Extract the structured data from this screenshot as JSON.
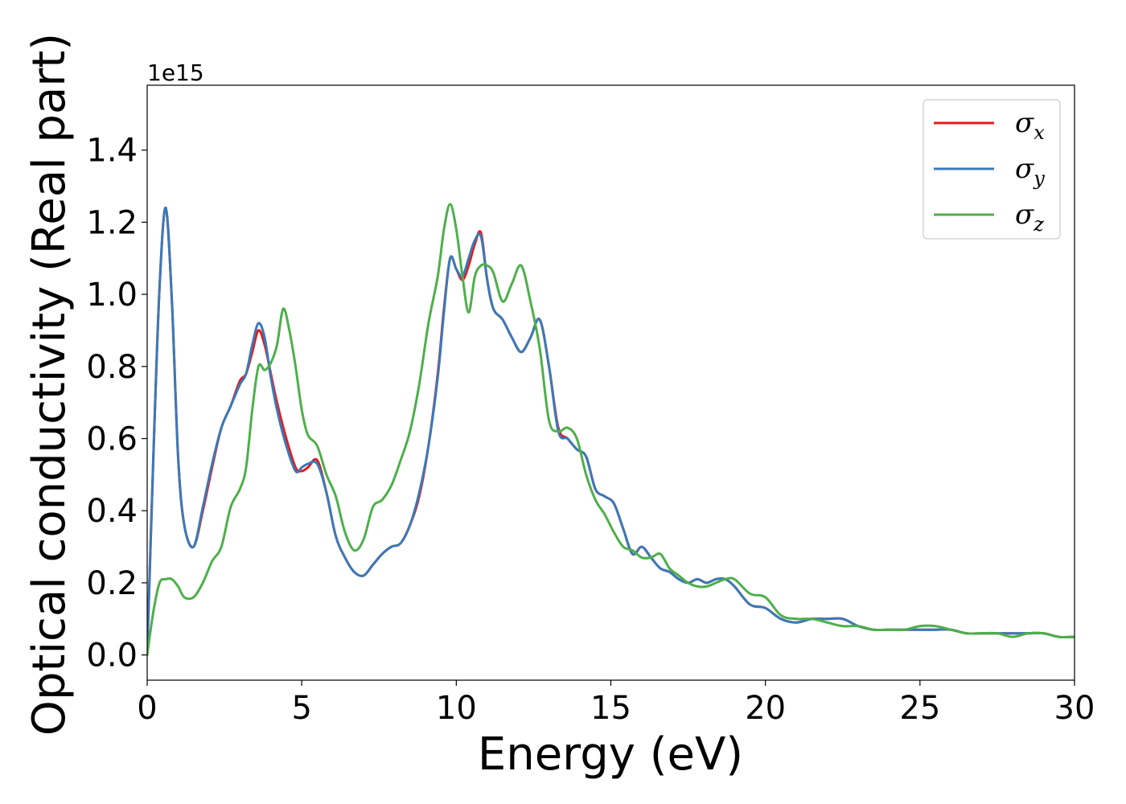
{
  "chart_data": {
    "type": "line",
    "xlabel": "Energy (eV)",
    "ylabel": "Optical conductivity (Real part)",
    "y_offset_text": "1e15",
    "xlim": [
      0,
      30
    ],
    "ylim": [
      -0.07,
      1.58
    ],
    "y_scale_multiplier": 1000000000000000.0,
    "x_ticks": [
      0,
      5,
      10,
      15,
      20,
      25,
      30
    ],
    "x_tick_labels": [
      "0",
      "5",
      "10",
      "15",
      "20",
      "25",
      "30"
    ],
    "y_ticks": [
      0.0,
      0.2,
      0.4,
      0.6,
      0.8,
      1.0,
      1.2,
      1.4
    ],
    "y_tick_labels": [
      "0.0",
      "0.2",
      "0.4",
      "0.6",
      "0.8",
      "1.0",
      "1.2",
      "1.4"
    ],
    "grid": false,
    "legend_position": "top-right",
    "series": [
      {
        "name": "σ_x",
        "label_base": "σ",
        "label_sub": "x",
        "color": "#e41a1c",
        "x": [
          0,
          0.2,
          0.4,
          0.6,
          0.8,
          1.0,
          1.2,
          1.5,
          1.8,
          2.1,
          2.4,
          2.7,
          3.0,
          3.2,
          3.4,
          3.6,
          3.8,
          4.0,
          4.2,
          4.5,
          4.8,
          5.0,
          5.2,
          5.5,
          5.8,
          6.1,
          6.4,
          6.7,
          7.0,
          7.3,
          7.6,
          7.9,
          8.2,
          8.5,
          8.8,
          9.1,
          9.4,
          9.6,
          9.8,
          10.0,
          10.2,
          10.4,
          10.6,
          10.8,
          11.0,
          11.2,
          11.5,
          11.8,
          12.1,
          12.4,
          12.7,
          13.0,
          13.3,
          13.6,
          13.9,
          14.2,
          14.5,
          14.8,
          15.1,
          15.4,
          15.7,
          16.0,
          16.3,
          16.6,
          16.9,
          17.2,
          17.5,
          17.8,
          18.1,
          18.4,
          18.7,
          19.0,
          19.5,
          20.0,
          20.5,
          21.0,
          21.5,
          22.0,
          22.5,
          23.0,
          23.5,
          24.0,
          24.5,
          25.0,
          25.5,
          26.0,
          26.5,
          27.0,
          27.5,
          28.0,
          28.5,
          29.0,
          29.5,
          30.0
        ],
        "y": [
          0.0,
          0.55,
          1.02,
          1.24,
          0.98,
          0.55,
          0.36,
          0.3,
          0.4,
          0.52,
          0.63,
          0.69,
          0.76,
          0.78,
          0.84,
          0.9,
          0.86,
          0.78,
          0.7,
          0.6,
          0.52,
          0.51,
          0.52,
          0.54,
          0.45,
          0.33,
          0.27,
          0.23,
          0.22,
          0.25,
          0.28,
          0.3,
          0.31,
          0.36,
          0.44,
          0.58,
          0.78,
          0.96,
          1.1,
          1.07,
          1.04,
          1.08,
          1.14,
          1.17,
          1.04,
          0.96,
          0.93,
          0.88,
          0.84,
          0.88,
          0.93,
          0.8,
          0.63,
          0.6,
          0.57,
          0.55,
          0.46,
          0.44,
          0.42,
          0.35,
          0.28,
          0.3,
          0.27,
          0.24,
          0.23,
          0.21,
          0.2,
          0.21,
          0.2,
          0.21,
          0.21,
          0.19,
          0.14,
          0.13,
          0.1,
          0.09,
          0.1,
          0.1,
          0.1,
          0.08,
          0.07,
          0.07,
          0.07,
          0.07,
          0.07,
          0.07,
          0.06,
          0.06,
          0.06,
          0.06,
          0.06,
          0.06,
          0.05,
          0.05
        ]
      },
      {
        "name": "σ_y",
        "label_base": "σ",
        "label_sub": "y",
        "color": "#3a7ab8",
        "x": [
          0,
          0.2,
          0.4,
          0.6,
          0.8,
          1.0,
          1.2,
          1.5,
          1.8,
          2.1,
          2.4,
          2.7,
          3.0,
          3.2,
          3.4,
          3.6,
          3.8,
          4.0,
          4.2,
          4.5,
          4.8,
          5.0,
          5.2,
          5.5,
          5.8,
          6.1,
          6.4,
          6.7,
          7.0,
          7.3,
          7.6,
          7.9,
          8.2,
          8.5,
          8.8,
          9.1,
          9.4,
          9.6,
          9.8,
          10.0,
          10.2,
          10.4,
          10.6,
          10.8,
          11.0,
          11.2,
          11.5,
          11.8,
          12.1,
          12.4,
          12.7,
          13.0,
          13.3,
          13.6,
          13.9,
          14.2,
          14.5,
          14.8,
          15.1,
          15.4,
          15.7,
          16.0,
          16.3,
          16.6,
          16.9,
          17.2,
          17.5,
          17.8,
          18.1,
          18.4,
          18.7,
          19.0,
          19.5,
          20.0,
          20.5,
          21.0,
          21.5,
          22.0,
          22.5,
          23.0,
          23.5,
          24.0,
          24.5,
          25.0,
          25.5,
          26.0,
          26.5,
          27.0,
          27.5,
          28.0,
          28.5,
          29.0,
          29.5,
          30.0
        ],
        "y": [
          0.0,
          0.55,
          1.02,
          1.24,
          0.98,
          0.55,
          0.36,
          0.3,
          0.41,
          0.53,
          0.63,
          0.69,
          0.75,
          0.78,
          0.86,
          0.92,
          0.88,
          0.77,
          0.68,
          0.58,
          0.51,
          0.52,
          0.53,
          0.53,
          0.45,
          0.33,
          0.27,
          0.23,
          0.22,
          0.25,
          0.28,
          0.3,
          0.31,
          0.36,
          0.45,
          0.58,
          0.77,
          0.95,
          1.1,
          1.07,
          1.05,
          1.1,
          1.15,
          1.16,
          1.04,
          0.96,
          0.93,
          0.88,
          0.84,
          0.88,
          0.93,
          0.8,
          0.62,
          0.6,
          0.57,
          0.55,
          0.46,
          0.44,
          0.42,
          0.35,
          0.28,
          0.3,
          0.27,
          0.24,
          0.23,
          0.21,
          0.2,
          0.21,
          0.2,
          0.21,
          0.21,
          0.19,
          0.14,
          0.13,
          0.1,
          0.09,
          0.1,
          0.1,
          0.1,
          0.08,
          0.07,
          0.07,
          0.07,
          0.07,
          0.07,
          0.07,
          0.06,
          0.06,
          0.06,
          0.06,
          0.06,
          0.06,
          0.05,
          0.05
        ]
      },
      {
        "name": "σ_z",
        "label_base": "σ",
        "label_sub": "z",
        "color": "#4daf4a",
        "x": [
          0,
          0.2,
          0.4,
          0.6,
          0.8,
          1.0,
          1.2,
          1.5,
          1.8,
          2.1,
          2.4,
          2.7,
          3.0,
          3.2,
          3.4,
          3.6,
          3.8,
          4.0,
          4.2,
          4.4,
          4.6,
          4.8,
          5.0,
          5.2,
          5.5,
          5.8,
          6.1,
          6.4,
          6.7,
          7.0,
          7.3,
          7.6,
          7.9,
          8.2,
          8.5,
          8.8,
          9.1,
          9.4,
          9.6,
          9.8,
          10.0,
          10.2,
          10.4,
          10.6,
          10.8,
          11.0,
          11.2,
          11.5,
          11.8,
          12.1,
          12.4,
          12.7,
          13.0,
          13.3,
          13.6,
          13.9,
          14.2,
          14.5,
          14.8,
          15.1,
          15.4,
          15.7,
          16.0,
          16.3,
          16.6,
          16.9,
          17.2,
          17.5,
          17.8,
          18.1,
          18.4,
          18.7,
          19.0,
          19.5,
          20.0,
          20.5,
          21.0,
          21.5,
          22.0,
          22.5,
          23.0,
          23.5,
          24.0,
          24.5,
          25.0,
          25.5,
          26.0,
          26.5,
          27.0,
          27.5,
          28.0,
          28.5,
          29.0,
          29.5,
          30.0
        ],
        "y": [
          0.0,
          0.12,
          0.2,
          0.21,
          0.21,
          0.19,
          0.16,
          0.16,
          0.2,
          0.26,
          0.3,
          0.41,
          0.46,
          0.52,
          0.68,
          0.8,
          0.79,
          0.81,
          0.86,
          0.96,
          0.9,
          0.8,
          0.68,
          0.61,
          0.58,
          0.5,
          0.44,
          0.34,
          0.29,
          0.32,
          0.41,
          0.43,
          0.47,
          0.54,
          0.62,
          0.75,
          0.92,
          1.05,
          1.18,
          1.25,
          1.18,
          1.05,
          0.95,
          1.05,
          1.08,
          1.08,
          1.06,
          0.98,
          1.03,
          1.08,
          0.98,
          0.85,
          0.65,
          0.62,
          0.63,
          0.6,
          0.5,
          0.43,
          0.39,
          0.34,
          0.3,
          0.29,
          0.27,
          0.27,
          0.28,
          0.24,
          0.22,
          0.2,
          0.19,
          0.19,
          0.2,
          0.21,
          0.21,
          0.17,
          0.16,
          0.11,
          0.1,
          0.1,
          0.09,
          0.08,
          0.08,
          0.07,
          0.07,
          0.07,
          0.08,
          0.08,
          0.07,
          0.06,
          0.06,
          0.06,
          0.05,
          0.06,
          0.06,
          0.05,
          0.05
        ]
      }
    ]
  }
}
